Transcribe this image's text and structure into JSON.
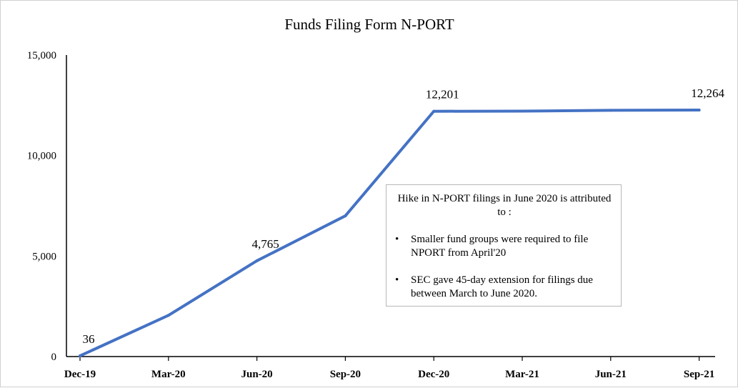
{
  "chart_data": {
    "type": "line",
    "title": "Funds Filing Form N-PORT",
    "categories": [
      "Dec-19",
      "Mar-20",
      "Jun-20",
      "Sep-20",
      "Dec-20",
      "Mar-21",
      "Jun-21",
      "Sep-21"
    ],
    "series": [
      {
        "values": [
          36,
          2050,
          4765,
          7000,
          12201,
          12210,
          12250,
          12264
        ],
        "color": "#4472C4"
      }
    ],
    "data_labels": [
      {
        "index": 0,
        "text": "36"
      },
      {
        "index": 2,
        "text": "4,765"
      },
      {
        "index": 4,
        "text": "12,201"
      },
      {
        "index": 7,
        "text": "12,264"
      }
    ],
    "y_ticks": [
      0,
      5000,
      10000,
      15000
    ],
    "y_tick_labels": [
      "0",
      "5,000",
      "10,000",
      "15,000"
    ],
    "ylim": [
      0,
      15000
    ],
    "grid": false,
    "legend": "none"
  },
  "callout": {
    "heading": "Hike in N-PORT filings in June 2020 is attributed to :",
    "bullet_symbol": "•",
    "points": [
      "Smaller fund groups were required to file NPORT from April'20",
      "SEC gave 45-day extension for filings due between March to June 2020."
    ]
  }
}
